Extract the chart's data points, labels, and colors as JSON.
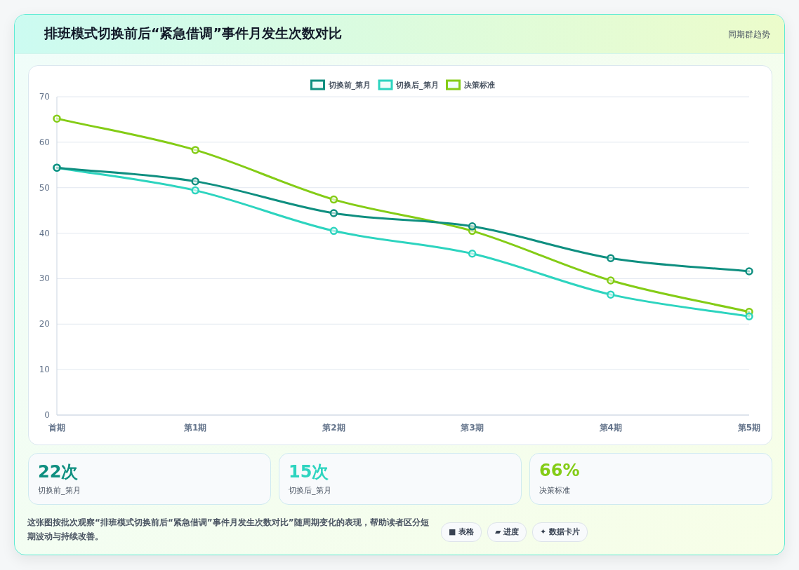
{
  "chart_data": [
    {
      "type": "line",
      "title": "排班模式切换前后“紧急借调”事件月发生次数对比",
      "subtitle": "同期群趋势",
      "categories": [
        "首期",
        "第1期",
        "第2期",
        "第3期",
        "第4期",
        "第5期"
      ],
      "series": [
        {
          "name": "切换前_第月",
          "color": "#0f8f80",
          "values": [
            54.4,
            51.4,
            44.4,
            41.5,
            34.5,
            31.6
          ]
        },
        {
          "name": "切换后_第月",
          "color": "#2dd4bf",
          "values": [
            54.4,
            49.4,
            40.5,
            35.5,
            26.5,
            21.7
          ]
        },
        {
          "name": "决策标准",
          "color": "#84cc16",
          "values": [
            65.2,
            58.3,
            47.4,
            40.5,
            29.6,
            22.7
          ]
        }
      ],
      "ylim": [
        0,
        70
      ],
      "yticks": [
        0,
        10,
        20,
        30,
        40,
        50,
        60,
        70
      ],
      "grid": "y",
      "legend": "top",
      "marker": "circle",
      "line_style": "solid",
      "annotations": [
        "这张图按批次观察“排班模式切换前后“紧急借调”事件月发生次数对比”随周期变化的表现，帮助读者区分短期波动与持续改善。",
        "■ 表格",
        "▰ 进度",
        "✦ 数据卡片"
      ]
    },
    {
      "type": "other",
      "annotations": [
        "22次",
        "切换前_第月",
        "15次",
        "切换后_第月",
        "66%",
        "决策标准"
      ]
    }
  ]
}
